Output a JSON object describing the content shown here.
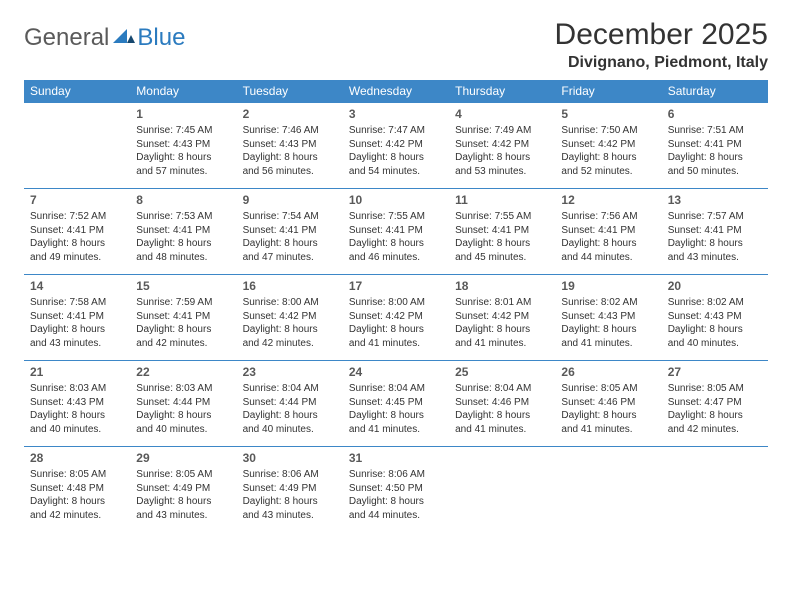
{
  "logo": {
    "general": "General",
    "blue": "Blue"
  },
  "title": "December 2025",
  "location": "Divignano, Piedmont, Italy",
  "header_color": "#3d87c7",
  "border_color": "#3d87c7",
  "text_color": "#333333",
  "daynum_color": "#595959",
  "weekdays": [
    "Sunday",
    "Monday",
    "Tuesday",
    "Wednesday",
    "Thursday",
    "Friday",
    "Saturday"
  ],
  "weeks": [
    [
      null,
      {
        "n": "1",
        "sr": "Sunrise: 7:45 AM",
        "ss": "Sunset: 4:43 PM",
        "d1": "Daylight: 8 hours",
        "d2": "and 57 minutes."
      },
      {
        "n": "2",
        "sr": "Sunrise: 7:46 AM",
        "ss": "Sunset: 4:43 PM",
        "d1": "Daylight: 8 hours",
        "d2": "and 56 minutes."
      },
      {
        "n": "3",
        "sr": "Sunrise: 7:47 AM",
        "ss": "Sunset: 4:42 PM",
        "d1": "Daylight: 8 hours",
        "d2": "and 54 minutes."
      },
      {
        "n": "4",
        "sr": "Sunrise: 7:49 AM",
        "ss": "Sunset: 4:42 PM",
        "d1": "Daylight: 8 hours",
        "d2": "and 53 minutes."
      },
      {
        "n": "5",
        "sr": "Sunrise: 7:50 AM",
        "ss": "Sunset: 4:42 PM",
        "d1": "Daylight: 8 hours",
        "d2": "and 52 minutes."
      },
      {
        "n": "6",
        "sr": "Sunrise: 7:51 AM",
        "ss": "Sunset: 4:41 PM",
        "d1": "Daylight: 8 hours",
        "d2": "and 50 minutes."
      }
    ],
    [
      {
        "n": "7",
        "sr": "Sunrise: 7:52 AM",
        "ss": "Sunset: 4:41 PM",
        "d1": "Daylight: 8 hours",
        "d2": "and 49 minutes."
      },
      {
        "n": "8",
        "sr": "Sunrise: 7:53 AM",
        "ss": "Sunset: 4:41 PM",
        "d1": "Daylight: 8 hours",
        "d2": "and 48 minutes."
      },
      {
        "n": "9",
        "sr": "Sunrise: 7:54 AM",
        "ss": "Sunset: 4:41 PM",
        "d1": "Daylight: 8 hours",
        "d2": "and 47 minutes."
      },
      {
        "n": "10",
        "sr": "Sunrise: 7:55 AM",
        "ss": "Sunset: 4:41 PM",
        "d1": "Daylight: 8 hours",
        "d2": "and 46 minutes."
      },
      {
        "n": "11",
        "sr": "Sunrise: 7:55 AM",
        "ss": "Sunset: 4:41 PM",
        "d1": "Daylight: 8 hours",
        "d2": "and 45 minutes."
      },
      {
        "n": "12",
        "sr": "Sunrise: 7:56 AM",
        "ss": "Sunset: 4:41 PM",
        "d1": "Daylight: 8 hours",
        "d2": "and 44 minutes."
      },
      {
        "n": "13",
        "sr": "Sunrise: 7:57 AM",
        "ss": "Sunset: 4:41 PM",
        "d1": "Daylight: 8 hours",
        "d2": "and 43 minutes."
      }
    ],
    [
      {
        "n": "14",
        "sr": "Sunrise: 7:58 AM",
        "ss": "Sunset: 4:41 PM",
        "d1": "Daylight: 8 hours",
        "d2": "and 43 minutes."
      },
      {
        "n": "15",
        "sr": "Sunrise: 7:59 AM",
        "ss": "Sunset: 4:41 PM",
        "d1": "Daylight: 8 hours",
        "d2": "and 42 minutes."
      },
      {
        "n": "16",
        "sr": "Sunrise: 8:00 AM",
        "ss": "Sunset: 4:42 PM",
        "d1": "Daylight: 8 hours",
        "d2": "and 42 minutes."
      },
      {
        "n": "17",
        "sr": "Sunrise: 8:00 AM",
        "ss": "Sunset: 4:42 PM",
        "d1": "Daylight: 8 hours",
        "d2": "and 41 minutes."
      },
      {
        "n": "18",
        "sr": "Sunrise: 8:01 AM",
        "ss": "Sunset: 4:42 PM",
        "d1": "Daylight: 8 hours",
        "d2": "and 41 minutes."
      },
      {
        "n": "19",
        "sr": "Sunrise: 8:02 AM",
        "ss": "Sunset: 4:43 PM",
        "d1": "Daylight: 8 hours",
        "d2": "and 41 minutes."
      },
      {
        "n": "20",
        "sr": "Sunrise: 8:02 AM",
        "ss": "Sunset: 4:43 PM",
        "d1": "Daylight: 8 hours",
        "d2": "and 40 minutes."
      }
    ],
    [
      {
        "n": "21",
        "sr": "Sunrise: 8:03 AM",
        "ss": "Sunset: 4:43 PM",
        "d1": "Daylight: 8 hours",
        "d2": "and 40 minutes."
      },
      {
        "n": "22",
        "sr": "Sunrise: 8:03 AM",
        "ss": "Sunset: 4:44 PM",
        "d1": "Daylight: 8 hours",
        "d2": "and 40 minutes."
      },
      {
        "n": "23",
        "sr": "Sunrise: 8:04 AM",
        "ss": "Sunset: 4:44 PM",
        "d1": "Daylight: 8 hours",
        "d2": "and 40 minutes."
      },
      {
        "n": "24",
        "sr": "Sunrise: 8:04 AM",
        "ss": "Sunset: 4:45 PM",
        "d1": "Daylight: 8 hours",
        "d2": "and 41 minutes."
      },
      {
        "n": "25",
        "sr": "Sunrise: 8:04 AM",
        "ss": "Sunset: 4:46 PM",
        "d1": "Daylight: 8 hours",
        "d2": "and 41 minutes."
      },
      {
        "n": "26",
        "sr": "Sunrise: 8:05 AM",
        "ss": "Sunset: 4:46 PM",
        "d1": "Daylight: 8 hours",
        "d2": "and 41 minutes."
      },
      {
        "n": "27",
        "sr": "Sunrise: 8:05 AM",
        "ss": "Sunset: 4:47 PM",
        "d1": "Daylight: 8 hours",
        "d2": "and 42 minutes."
      }
    ],
    [
      {
        "n": "28",
        "sr": "Sunrise: 8:05 AM",
        "ss": "Sunset: 4:48 PM",
        "d1": "Daylight: 8 hours",
        "d2": "and 42 minutes."
      },
      {
        "n": "29",
        "sr": "Sunrise: 8:05 AM",
        "ss": "Sunset: 4:49 PM",
        "d1": "Daylight: 8 hours",
        "d2": "and 43 minutes."
      },
      {
        "n": "30",
        "sr": "Sunrise: 8:06 AM",
        "ss": "Sunset: 4:49 PM",
        "d1": "Daylight: 8 hours",
        "d2": "and 43 minutes."
      },
      {
        "n": "31",
        "sr": "Sunrise: 8:06 AM",
        "ss": "Sunset: 4:50 PM",
        "d1": "Daylight: 8 hours",
        "d2": "and 44 minutes."
      },
      null,
      null,
      null
    ]
  ]
}
